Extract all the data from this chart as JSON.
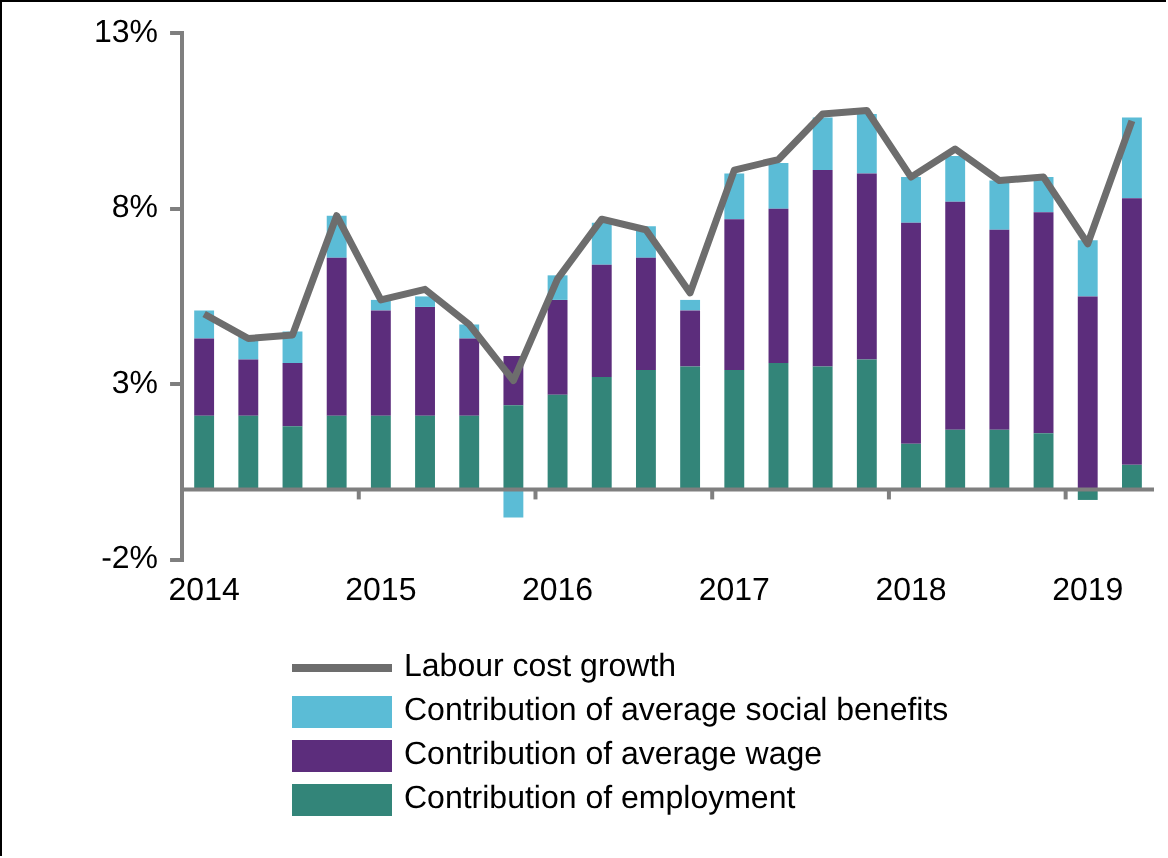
{
  "chart_data": {
    "type": "bar",
    "stacked": true,
    "categories": [
      "2014",
      null,
      null,
      null,
      "2015",
      null,
      null,
      null,
      "2016",
      null,
      null,
      null,
      "2017",
      null,
      null,
      null,
      "2018",
      null,
      null,
      null,
      "2019",
      null
    ],
    "series": [
      {
        "name": "Contribution of employment",
        "color": "#338579",
        "values": [
          2.1,
          2.1,
          1.8,
          2.1,
          2.1,
          2.1,
          2.1,
          2.4,
          2.7,
          3.2,
          3.4,
          3.5,
          3.4,
          3.6,
          3.5,
          3.7,
          1.3,
          1.7,
          1.7,
          1.6,
          -0.3,
          0.7
        ]
      },
      {
        "name": "Contribution of average wage",
        "color": "#5c2d7c",
        "values": [
          2.2,
          1.6,
          1.8,
          4.5,
          3.0,
          3.1,
          2.2,
          1.4,
          2.7,
          3.2,
          3.2,
          1.6,
          4.3,
          4.4,
          5.6,
          5.3,
          6.3,
          6.5,
          5.7,
          6.3,
          5.5,
          7.6
        ]
      },
      {
        "name": "Contribution of average social benefits",
        "color": "#5bbcd6",
        "values": [
          0.8,
          0.7,
          0.9,
          1.2,
          0.3,
          0.3,
          0.4,
          -0.8,
          0.7,
          1.2,
          0.9,
          0.3,
          1.3,
          1.3,
          1.5,
          1.7,
          1.3,
          1.3,
          1.4,
          1.0,
          1.6,
          2.3
        ]
      },
      {
        "name": "Labour cost growth",
        "type": "line",
        "color": "#6d6d6d",
        "values": [
          5.0,
          4.3,
          4.4,
          7.8,
          5.4,
          5.7,
          4.7,
          3.1,
          6.0,
          7.7,
          7.4,
          5.6,
          9.1,
          9.4,
          10.7,
          10.8,
          8.9,
          9.7,
          8.8,
          8.9,
          7.0,
          10.5
        ]
      }
    ],
    "ylim": [
      -2,
      13
    ],
    "yticks": [
      {
        "value": -2,
        "label": "-2%"
      },
      {
        "value": 3,
        "label": "3%"
      },
      {
        "value": 8,
        "label": "8%"
      },
      {
        "value": 13,
        "label": "13%"
      }
    ],
    "grid": false,
    "legend": "bottom",
    "marker": "none"
  }
}
